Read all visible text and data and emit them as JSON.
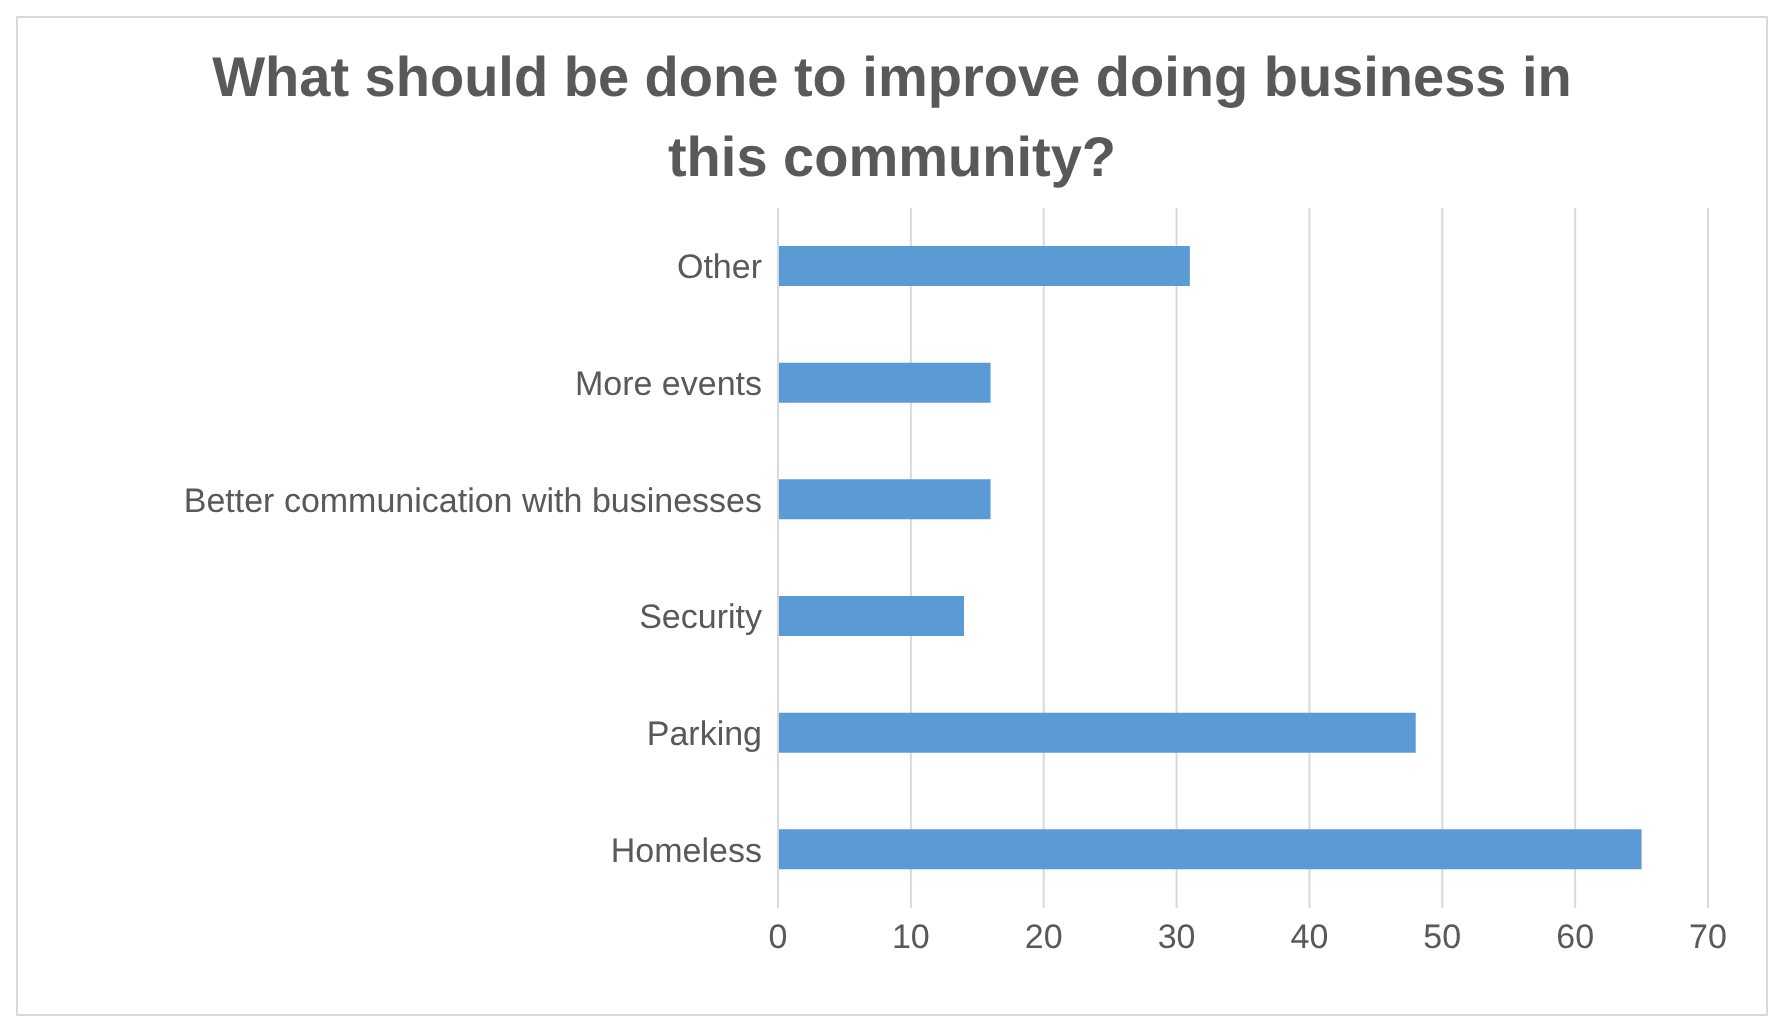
{
  "chart_data": {
    "type": "bar",
    "orientation": "horizontal",
    "title": "What should be done to improve doing business in this community?",
    "categories": [
      "Other",
      "More events",
      "Better communication with businesses",
      "Security",
      "Parking",
      "Homeless"
    ],
    "values": [
      31,
      16,
      16,
      14,
      48,
      65
    ],
    "color": "#5b9bd5",
    "xlim": [
      0,
      70
    ],
    "xticks": [
      0,
      10,
      20,
      30,
      40,
      50,
      60,
      70
    ],
    "grid": "x"
  }
}
